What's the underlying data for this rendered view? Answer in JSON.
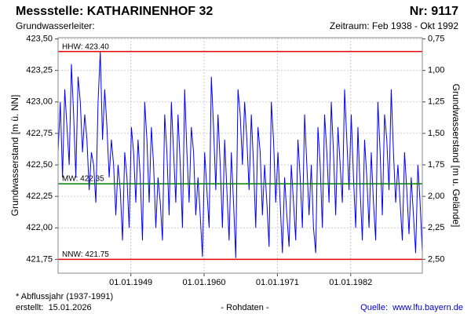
{
  "chart_data": {
    "type": "line",
    "title": "Messstelle: KATHARINENHOF 32",
    "number": "Nr: 9117",
    "subtitle_left": "Grundwasserleiter:",
    "subtitle_right": "Zeitraum: Feb 1938 - Okt 1992",
    "ylabel": "Grundwasserstand [m ü. NN]",
    "y2label": "Grundwasserstand [m u. Gelände]",
    "footnote": "* Abflussjahr (1937-1991)",
    "created": "erstellt:  15.01.2026",
    "data_note": "- Rohdaten -",
    "source": "Quelle:  www.lfu.bayern.de",
    "color": "#0000ff",
    "x": [
      "1938-02",
      "1938-06",
      "1938-10",
      "1939-02",
      "1939-06",
      "1939-10",
      "1940-02",
      "1940-06",
      "1940-10",
      "1941-02",
      "1941-06",
      "1941-10",
      "1942-02",
      "1942-06",
      "1942-10",
      "1943-02",
      "1943-06",
      "1943-10",
      "1944-02",
      "1944-06",
      "1944-10",
      "1945-02",
      "1945-06",
      "1945-10",
      "1946-02",
      "1946-06",
      "1946-10",
      "1947-02",
      "1947-06",
      "1947-10",
      "1948-02",
      "1948-06",
      "1948-10",
      "1949-02",
      "1949-06",
      "1949-10",
      "1950-02",
      "1950-06",
      "1950-10",
      "1951-02",
      "1951-06",
      "1951-10",
      "1952-02",
      "1952-06",
      "1952-10",
      "1953-02",
      "1953-06",
      "1953-10",
      "1954-02",
      "1954-06",
      "1954-10",
      "1955-02",
      "1955-06",
      "1955-10",
      "1956-02",
      "1956-06",
      "1956-10",
      "1957-02",
      "1957-06",
      "1957-10",
      "1958-02",
      "1958-06",
      "1958-10",
      "1959-02",
      "1959-06",
      "1959-10",
      "1960-02",
      "1960-06",
      "1960-10",
      "1961-02",
      "1961-06",
      "1961-10",
      "1962-02",
      "1962-06",
      "1962-10",
      "1963-02",
      "1963-06",
      "1963-10",
      "1964-02",
      "1964-06",
      "1964-10",
      "1965-02",
      "1965-06",
      "1965-10",
      "1966-02",
      "1966-06",
      "1966-10",
      "1967-02",
      "1967-06",
      "1967-10",
      "1968-02",
      "1968-06",
      "1968-10",
      "1969-02",
      "1969-06",
      "1969-10",
      "1970-02",
      "1970-06",
      "1970-10",
      "1971-02",
      "1971-06",
      "1971-10",
      "1972-02",
      "1972-06",
      "1972-10",
      "1973-02",
      "1973-06",
      "1973-10",
      "1974-02",
      "1974-06",
      "1974-10",
      "1975-02",
      "1975-06",
      "1975-10",
      "1976-02",
      "1976-06",
      "1976-10",
      "1977-02",
      "1977-06",
      "1977-10",
      "1978-02",
      "1978-06",
      "1978-10",
      "1979-02",
      "1979-06",
      "1979-10",
      "1980-02",
      "1980-06",
      "1980-10",
      "1981-02",
      "1981-06",
      "1981-10",
      "1982-02",
      "1982-06",
      "1982-10",
      "1983-02",
      "1983-06",
      "1983-10",
      "1984-02",
      "1984-06",
      "1984-10",
      "1985-02",
      "1985-06",
      "1985-10",
      "1986-02",
      "1986-06",
      "1986-10",
      "1987-02",
      "1987-06",
      "1987-10",
      "1988-02",
      "1988-06",
      "1988-10",
      "1989-02",
      "1989-06",
      "1989-10",
      "1990-02",
      "1990-06",
      "1990-10",
      "1991-02",
      "1991-06",
      "1991-10",
      "1992-02",
      "1992-06",
      "1992-10"
    ],
    "values": [
      422.6,
      423.0,
      422.4,
      423.1,
      422.8,
      422.5,
      423.3,
      422.9,
      422.4,
      423.2,
      423.0,
      422.6,
      422.9,
      422.7,
      422.3,
      422.6,
      422.5,
      422.2,
      423.0,
      423.4,
      422.7,
      423.1,
      422.8,
      422.4,
      422.7,
      422.5,
      422.1,
      422.5,
      422.3,
      421.9,
      422.6,
      422.4,
      422.0,
      422.8,
      422.6,
      422.2,
      422.7,
      422.4,
      421.9,
      423.0,
      422.7,
      422.2,
      422.8,
      422.5,
      422.0,
      422.4,
      422.2,
      421.9,
      422.9,
      422.6,
      422.1,
      423.0,
      422.6,
      422.2,
      422.9,
      422.5,
      422.0,
      423.1,
      422.6,
      422.2,
      422.8,
      422.6,
      422.1,
      422.4,
      422.1,
      421.77,
      422.6,
      422.3,
      422.0,
      423.2,
      422.8,
      422.3,
      422.9,
      422.5,
      422.0,
      422.7,
      422.3,
      421.9,
      422.6,
      422.2,
      421.76,
      423.1,
      422.9,
      422.5,
      423.0,
      422.7,
      422.3,
      422.9,
      422.5,
      422.0,
      422.8,
      422.6,
      422.1,
      422.5,
      422.2,
      421.85,
      423.0,
      422.7,
      422.2,
      422.6,
      422.2,
      421.8,
      422.4,
      422.1,
      421.85,
      422.5,
      422.2,
      421.9,
      422.7,
      422.4,
      422.0,
      422.9,
      422.5,
      422.1,
      422.5,
      422.0,
      421.8,
      422.8,
      422.5,
      422.0,
      422.9,
      422.6,
      422.2,
      423.0,
      422.6,
      422.1,
      422.8,
      422.5,
      422.2,
      423.1,
      422.7,
      422.3,
      422.9,
      422.4,
      422.0,
      422.8,
      422.3,
      421.9,
      422.7,
      422.4,
      422.0,
      422.6,
      422.2,
      421.9,
      423.0,
      422.6,
      422.1,
      422.9,
      422.7,
      422.3,
      423.1,
      422.6,
      422.2,
      422.5,
      422.2,
      421.9,
      422.6,
      422.3,
      421.95,
      422.4,
      422.1,
      421.8,
      422.5,
      422.2,
      421.8
    ],
    "xlim": [
      "1938-02",
      "1992-10"
    ],
    "xticks": [
      {
        "value": "1949-01",
        "label": "01.01.1949"
      },
      {
        "value": "1960-01",
        "label": "01.01.1960"
      },
      {
        "value": "1971-01",
        "label": "01.01.1971"
      },
      {
        "value": "1982-01",
        "label": "01.01.1982"
      }
    ],
    "ylim": [
      421.64,
      423.51
    ],
    "yticks": [
      {
        "value": 423.5,
        "label": "423,50"
      },
      {
        "value": 423.25,
        "label": "423,25"
      },
      {
        "value": 423.0,
        "label": "423,00"
      },
      {
        "value": 422.75,
        "label": "422,75"
      },
      {
        "value": 422.5,
        "label": "422,50"
      },
      {
        "value": 422.25,
        "label": "422,25"
      },
      {
        "value": 422.0,
        "label": "422,00"
      },
      {
        "value": 421.75,
        "label": "421,75"
      }
    ],
    "y2lim": [
      2.61,
      0.74
    ],
    "y2ticks": [
      {
        "value": 0.75,
        "label": "0,75"
      },
      {
        "value": 1.0,
        "label": "1,00"
      },
      {
        "value": 1.25,
        "label": "1,25"
      },
      {
        "value": 1.5,
        "label": "1,50"
      },
      {
        "value": 1.75,
        "label": "1,75"
      },
      {
        "value": 2.0,
        "label": "2,00"
      },
      {
        "value": 2.25,
        "label": "2,25"
      },
      {
        "value": 2.5,
        "label": "2,50"
      }
    ],
    "grid": true,
    "ref_lines": [
      {
        "label": "HHW: 423.40",
        "value": 423.4,
        "color": "#e00000"
      },
      {
        "label": "MW: 422.35",
        "value": 422.35,
        "color": "#008000"
      },
      {
        "label": "NNW: 421.75",
        "value": 421.75,
        "color": "#e00000"
      }
    ]
  }
}
